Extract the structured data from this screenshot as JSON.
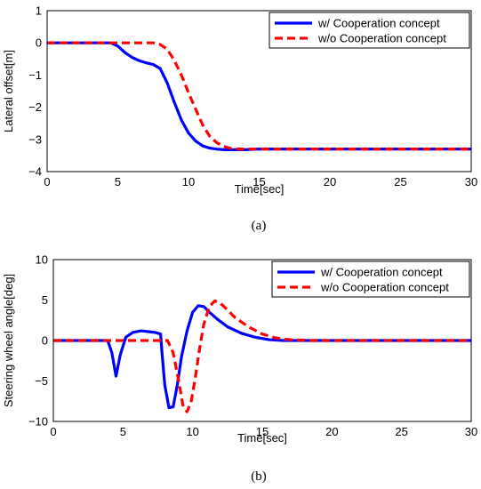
{
  "chart_data": [
    {
      "type": "line",
      "caption": "(a)",
      "xlabel": "Time[sec]",
      "ylabel": "Lateral offset[m]",
      "xlim": [
        0,
        30
      ],
      "ylim": [
        -4,
        1
      ],
      "xticks": [
        0,
        5,
        10,
        15,
        20,
        25,
        30
      ],
      "yticks": [
        -4,
        -3,
        -2,
        -1,
        0,
        1
      ],
      "grid": false,
      "legend_position": "top-right",
      "series": [
        {
          "name": "w/ Cooperation concept",
          "color": "#0000ff",
          "style": "solid",
          "x": [
            0,
            4.5,
            5.0,
            5.5,
            6.0,
            6.5,
            7.0,
            7.5,
            8.0,
            8.5,
            9.0,
            9.5,
            10.0,
            10.5,
            11.0,
            11.5,
            12.0,
            12.5,
            13.0,
            13.5,
            14.0,
            14.5,
            15.0,
            30
          ],
          "y": [
            0,
            0,
            -0.1,
            -0.3,
            -0.45,
            -0.55,
            -0.62,
            -0.67,
            -0.8,
            -1.25,
            -1.85,
            -2.4,
            -2.8,
            -3.05,
            -3.2,
            -3.27,
            -3.3,
            -3.32,
            -3.32,
            -3.32,
            -3.32,
            -3.31,
            -3.3,
            -3.3
          ]
        },
        {
          "name": "w/o Cooperation concept",
          "color": "#ff0000",
          "style": "dashed",
          "x": [
            0,
            7.5,
            8.0,
            8.5,
            9.0,
            9.5,
            10.0,
            10.5,
            11.0,
            11.5,
            12.0,
            12.5,
            13.0,
            13.5,
            14.0,
            15.0,
            30
          ],
          "y": [
            0,
            0,
            -0.05,
            -0.2,
            -0.55,
            -1.0,
            -1.55,
            -2.05,
            -2.55,
            -2.9,
            -3.1,
            -3.22,
            -3.28,
            -3.3,
            -3.3,
            -3.3,
            -3.3
          ]
        }
      ]
    },
    {
      "type": "line",
      "caption": "(b)",
      "xlabel": "Time[sec]",
      "ylabel": "Steering wheel angle[deg]",
      "xlim": [
        0,
        30
      ],
      "ylim": [
        -10,
        10
      ],
      "xticks": [
        0,
        5,
        10,
        15,
        20,
        25,
        30
      ],
      "yticks": [
        -10,
        -5,
        0,
        5,
        10
      ],
      "grid": false,
      "legend_position": "top-right",
      "series": [
        {
          "name": "w/ Cooperation concept",
          "color": "#0000ff",
          "style": "solid",
          "x": [
            0,
            3.9,
            4.2,
            4.5,
            4.8,
            5.2,
            5.7,
            6.3,
            6.8,
            7.3,
            7.7,
            7.8,
            8.0,
            8.3,
            8.6,
            8.9,
            9.2,
            9.6,
            10.0,
            10.4,
            10.8,
            11.2,
            11.8,
            12.5,
            13.5,
            14.5,
            15.5,
            16.5,
            18,
            30
          ],
          "y": [
            0,
            0,
            -1.5,
            -4.4,
            -1.8,
            0.4,
            1.0,
            1.2,
            1.1,
            1.0,
            0.8,
            -1.5,
            -5.5,
            -8.3,
            -8.2,
            -5.5,
            -2.0,
            1.2,
            3.5,
            4.3,
            4.2,
            3.5,
            2.6,
            1.7,
            0.9,
            0.4,
            0.1,
            0.0,
            0,
            0
          ]
        },
        {
          "name": "w/o Cooperation concept",
          "color": "#ff0000",
          "style": "dashed",
          "x": [
            0,
            8.2,
            8.6,
            9.0,
            9.3,
            9.6,
            9.9,
            10.2,
            10.5,
            10.8,
            11.2,
            11.6,
            12.0,
            12.5,
            13.0,
            14.0,
            15.0,
            16.0,
            17.0,
            18.5,
            30
          ],
          "y": [
            0,
            0,
            -1.5,
            -5.0,
            -8.0,
            -8.8,
            -7.5,
            -4.5,
            -1.0,
            2.0,
            4.2,
            4.9,
            4.6,
            3.8,
            2.9,
            1.7,
            0.8,
            0.3,
            0.1,
            0,
            0
          ]
        }
      ]
    }
  ]
}
